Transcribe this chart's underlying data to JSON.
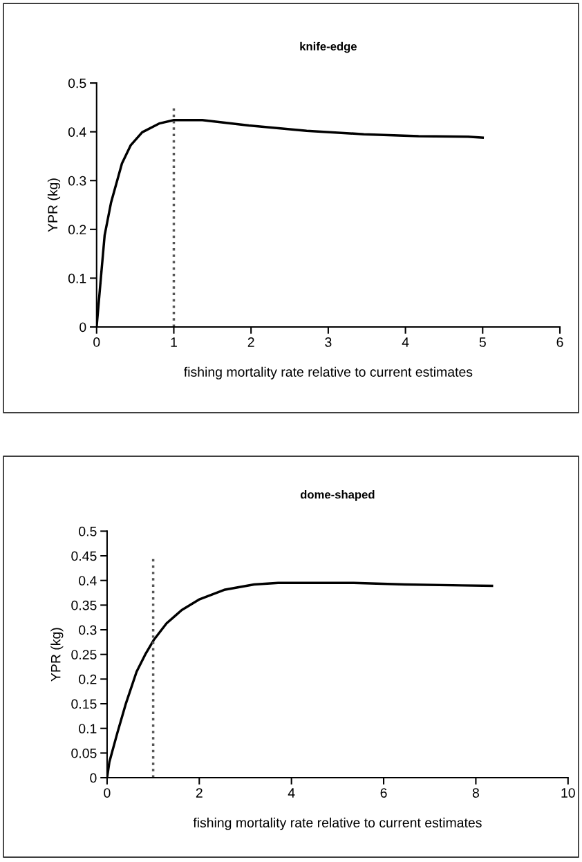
{
  "chart_data": [
    {
      "type": "line",
      "title": "knife-edge",
      "xlabel": "fishing mortality rate relative to current estimates",
      "ylabel": "YPR (kg)",
      "x": [
        0,
        0.06,
        0.104,
        0.187,
        0.328,
        0.44,
        0.59,
        0.81,
        1.0,
        1.37,
        1.97,
        2.72,
        3.46,
        4.17,
        4.81,
        5.0
      ],
      "series": [
        {
          "color": "#000000",
          "values": [
            0,
            0.109,
            0.188,
            0.255,
            0.335,
            0.372,
            0.399,
            0.417,
            0.424,
            0.424,
            0.413,
            0.402,
            0.395,
            0.391,
            0.39,
            0.388
          ]
        }
      ],
      "xlim": [
        0,
        6
      ],
      "xticks": [
        0,
        1,
        2,
        3,
        4,
        5,
        6
      ],
      "ylim": [
        0,
        0.5
      ],
      "yticks": [
        0,
        0.1,
        0.2,
        0.3,
        0.4,
        0.5
      ],
      "ref_lines": [
        {
          "axis": "x",
          "value": 1,
          "color": "#555555",
          "line_style": "dotted"
        }
      ],
      "grid": false,
      "legend": false
    },
    {
      "type": "line",
      "title": "dome-shaped",
      "xlabel": "fishing mortality rate relative to current estimates",
      "ylabel": "YPR (kg)",
      "x": [
        0,
        0.05,
        0.22,
        0.41,
        0.64,
        0.84,
        1.01,
        1.29,
        1.62,
        2.01,
        2.54,
        3.19,
        3.71,
        5.35,
        6.46,
        7.7,
        8.35
      ],
      "series": [
        {
          "color": "#000000",
          "values": [
            0,
            0.032,
            0.09,
            0.151,
            0.215,
            0.252,
            0.279,
            0.313,
            0.34,
            0.362,
            0.381,
            0.392,
            0.395,
            0.395,
            0.392,
            0.39,
            0.389
          ]
        }
      ],
      "xlim": [
        0,
        10
      ],
      "xticks": [
        0,
        2,
        4,
        6,
        8,
        10
      ],
      "ylim": [
        0,
        0.5
      ],
      "yticks": [
        0,
        0.05,
        0.1,
        0.15,
        0.2,
        0.25,
        0.3,
        0.35,
        0.4,
        0.45,
        0.5
      ],
      "ref_lines": [
        {
          "axis": "x",
          "value": 1,
          "color": "#555555",
          "line_style": "dotted"
        }
      ],
      "grid": false,
      "legend": false
    }
  ]
}
